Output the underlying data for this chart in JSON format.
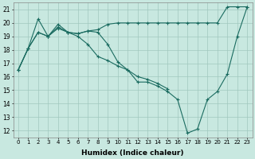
{
  "xlabel": "Humidex (Indice chaleur)",
  "background_color": "#c8e8e0",
  "grid_color": "#a0c8be",
  "line_color": "#1a6b60",
  "xlim": [
    -0.5,
    23.5
  ],
  "ylim": [
    11.5,
    21.5
  ],
  "xticks": [
    0,
    1,
    2,
    3,
    4,
    5,
    6,
    7,
    8,
    9,
    10,
    11,
    12,
    13,
    14,
    15,
    16,
    17,
    18,
    19,
    20,
    21,
    22,
    23
  ],
  "yticks": [
    12,
    13,
    14,
    15,
    16,
    17,
    18,
    19,
    20,
    21
  ],
  "series_A": [
    16.5,
    18.1,
    20.3,
    19.0,
    19.9,
    19.3,
    19.2,
    19.4,
    19.3,
    18.4,
    17.1,
    16.5,
    15.6,
    15.6,
    15.3,
    14.9,
    14.3,
    11.8,
    12.1,
    14.3,
    14.9,
    16.2,
    19.0,
    21.2
  ],
  "series_B_x": [
    0,
    1,
    2,
    3,
    4,
    5,
    6,
    7,
    8,
    9,
    10,
    11,
    12,
    13,
    14,
    15
  ],
  "series_B_y": [
    16.5,
    18.1,
    19.3,
    19.0,
    19.6,
    19.3,
    19.0,
    18.4,
    17.5,
    17.2,
    16.8,
    16.5,
    16.0,
    15.8,
    15.5,
    15.1
  ],
  "series_C_x": [
    0,
    1,
    2,
    3,
    4,
    5,
    6,
    7,
    8,
    9,
    10,
    11,
    12,
    13,
    14,
    15,
    16,
    17,
    18,
    19,
    20,
    21,
    22,
    23
  ],
  "series_C_y": [
    16.5,
    18.1,
    19.3,
    19.0,
    19.7,
    19.3,
    19.2,
    19.4,
    19.5,
    19.9,
    20.0,
    20.0,
    20.0,
    20.0,
    20.0,
    20.0,
    20.0,
    20.0,
    20.0,
    20.0,
    20.0,
    21.2,
    21.2,
    21.2
  ]
}
